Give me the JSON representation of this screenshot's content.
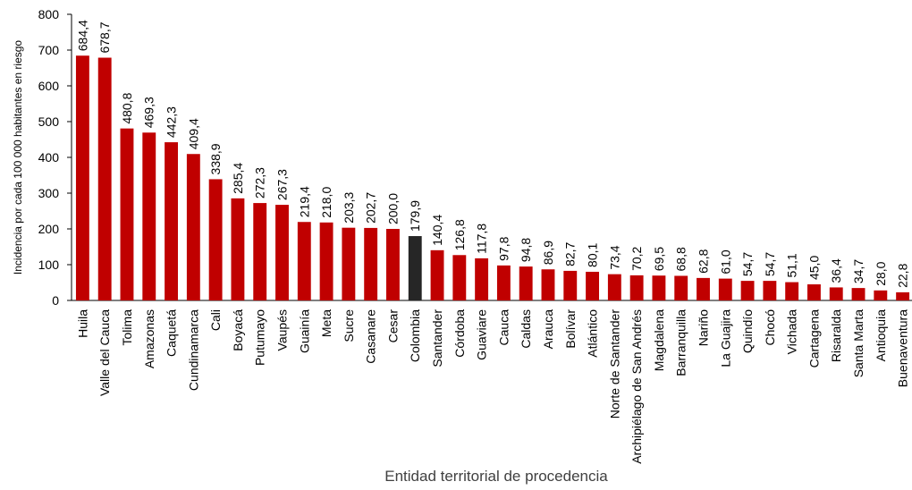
{
  "chart_data": {
    "type": "bar",
    "x_label": "Entidad territorial de procedencia",
    "y_label": "Incidencia por cada 100 000 habitantes en riesgo",
    "categories": [
      "Huila",
      "Valle del Cauca",
      "Tolima",
      "Amazonas",
      "Caquetá",
      "Cundinamarca",
      "Cali",
      "Boyacá",
      "Putumayo",
      "Vaupés",
      "Guainía",
      "Meta",
      "Sucre",
      "Casanare",
      "Cesar",
      "Colombia",
      "Santander",
      "Córdoba",
      "Guaviare",
      "Cauca",
      "Caldas",
      "Arauca",
      "Bolívar",
      "Atlántico",
      "Norte de Santander",
      "Archipiélago de San Andrés",
      "Magdalena",
      "Barranquilla",
      "Nariño",
      "La Guajira",
      "Quindío",
      "Chocó",
      "Vichada",
      "Cartagena",
      "Risaralda",
      "Santa Marta",
      "Antioquia",
      "Buenaventura"
    ],
    "values": [
      684.4,
      678.7,
      480.8,
      469.3,
      442.3,
      409.4,
      338.9,
      285.4,
      272.3,
      267.3,
      219.4,
      218.0,
      203.3,
      202.7,
      200.0,
      179.9,
      140.4,
      126.8,
      117.8,
      97.8,
      94.8,
      86.9,
      82.7,
      80.1,
      73.4,
      70.2,
      69.5,
      68.8,
      62.8,
      61.0,
      54.7,
      54.7,
      51.1,
      45.0,
      36.4,
      34.7,
      28.0,
      22.8
    ],
    "value_labels": [
      "684,4",
      "678,7",
      "480,8",
      "469,3",
      "442,3",
      "409,4",
      "338,9",
      "285,4",
      "272,3",
      "267,3",
      "219,4",
      "218,0",
      "203,3",
      "202,7",
      "200,0",
      "179,9",
      "140,4",
      "126,8",
      "117,8",
      "97,8",
      "94,8",
      "86,9",
      "82,7",
      "80,1",
      "73,4",
      "70,2",
      "69,5",
      "68,8",
      "62,8",
      "61,0",
      "54,7",
      "54,7",
      "51,1",
      "45,0",
      "36,4",
      "34,7",
      "28,0",
      "22,8"
    ],
    "colors": [
      "#c00000",
      "#c00000",
      "#c00000",
      "#c00000",
      "#c00000",
      "#c00000",
      "#c00000",
      "#c00000",
      "#c00000",
      "#c00000",
      "#c00000",
      "#c00000",
      "#c00000",
      "#c00000",
      "#c00000",
      "#262626",
      "#c00000",
      "#c00000",
      "#c00000",
      "#c00000",
      "#c00000",
      "#c00000",
      "#c00000",
      "#c00000",
      "#c00000",
      "#c00000",
      "#c00000",
      "#c00000",
      "#c00000",
      "#c00000",
      "#c00000",
      "#c00000",
      "#c00000",
      "#c00000",
      "#c00000",
      "#c00000",
      "#c00000",
      "#c00000"
    ],
    "ylim": [
      0,
      800
    ],
    "yticks": [
      0,
      100,
      200,
      300,
      400,
      500,
      600,
      700,
      800
    ],
    "grid": false
  }
}
